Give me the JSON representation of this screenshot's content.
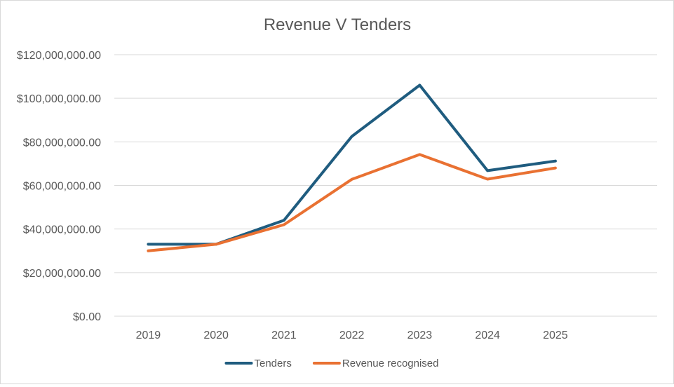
{
  "chart_data": {
    "type": "line",
    "title": "Revenue V Tenders",
    "xlabel": "",
    "ylabel": "",
    "categories": [
      "2019",
      "2020",
      "2021",
      "2022",
      "2023",
      "2024",
      "2025"
    ],
    "ylim": [
      0,
      120000000
    ],
    "yticks": [
      0,
      20000000,
      40000000,
      60000000,
      80000000,
      100000000,
      120000000
    ],
    "ytick_labels": [
      "$0.00",
      "$20,000,000.00",
      "$40,000,000.00",
      "$60,000,000.00",
      "$80,000,000.00",
      "$100,000,000.00",
      "$120,000,000.00"
    ],
    "grid": true,
    "legend_position": "bottom",
    "series": [
      {
        "name": "Tenders",
        "color": "#1f5c7f",
        "values": [
          33000000,
          33000000,
          44000000,
          82500000,
          106000000,
          66800000,
          71200000
        ]
      },
      {
        "name": "Revenue recognised",
        "color": "#e97132",
        "values": [
          30000000,
          33000000,
          42000000,
          62800000,
          74200000,
          62900000,
          68000000
        ]
      }
    ]
  }
}
